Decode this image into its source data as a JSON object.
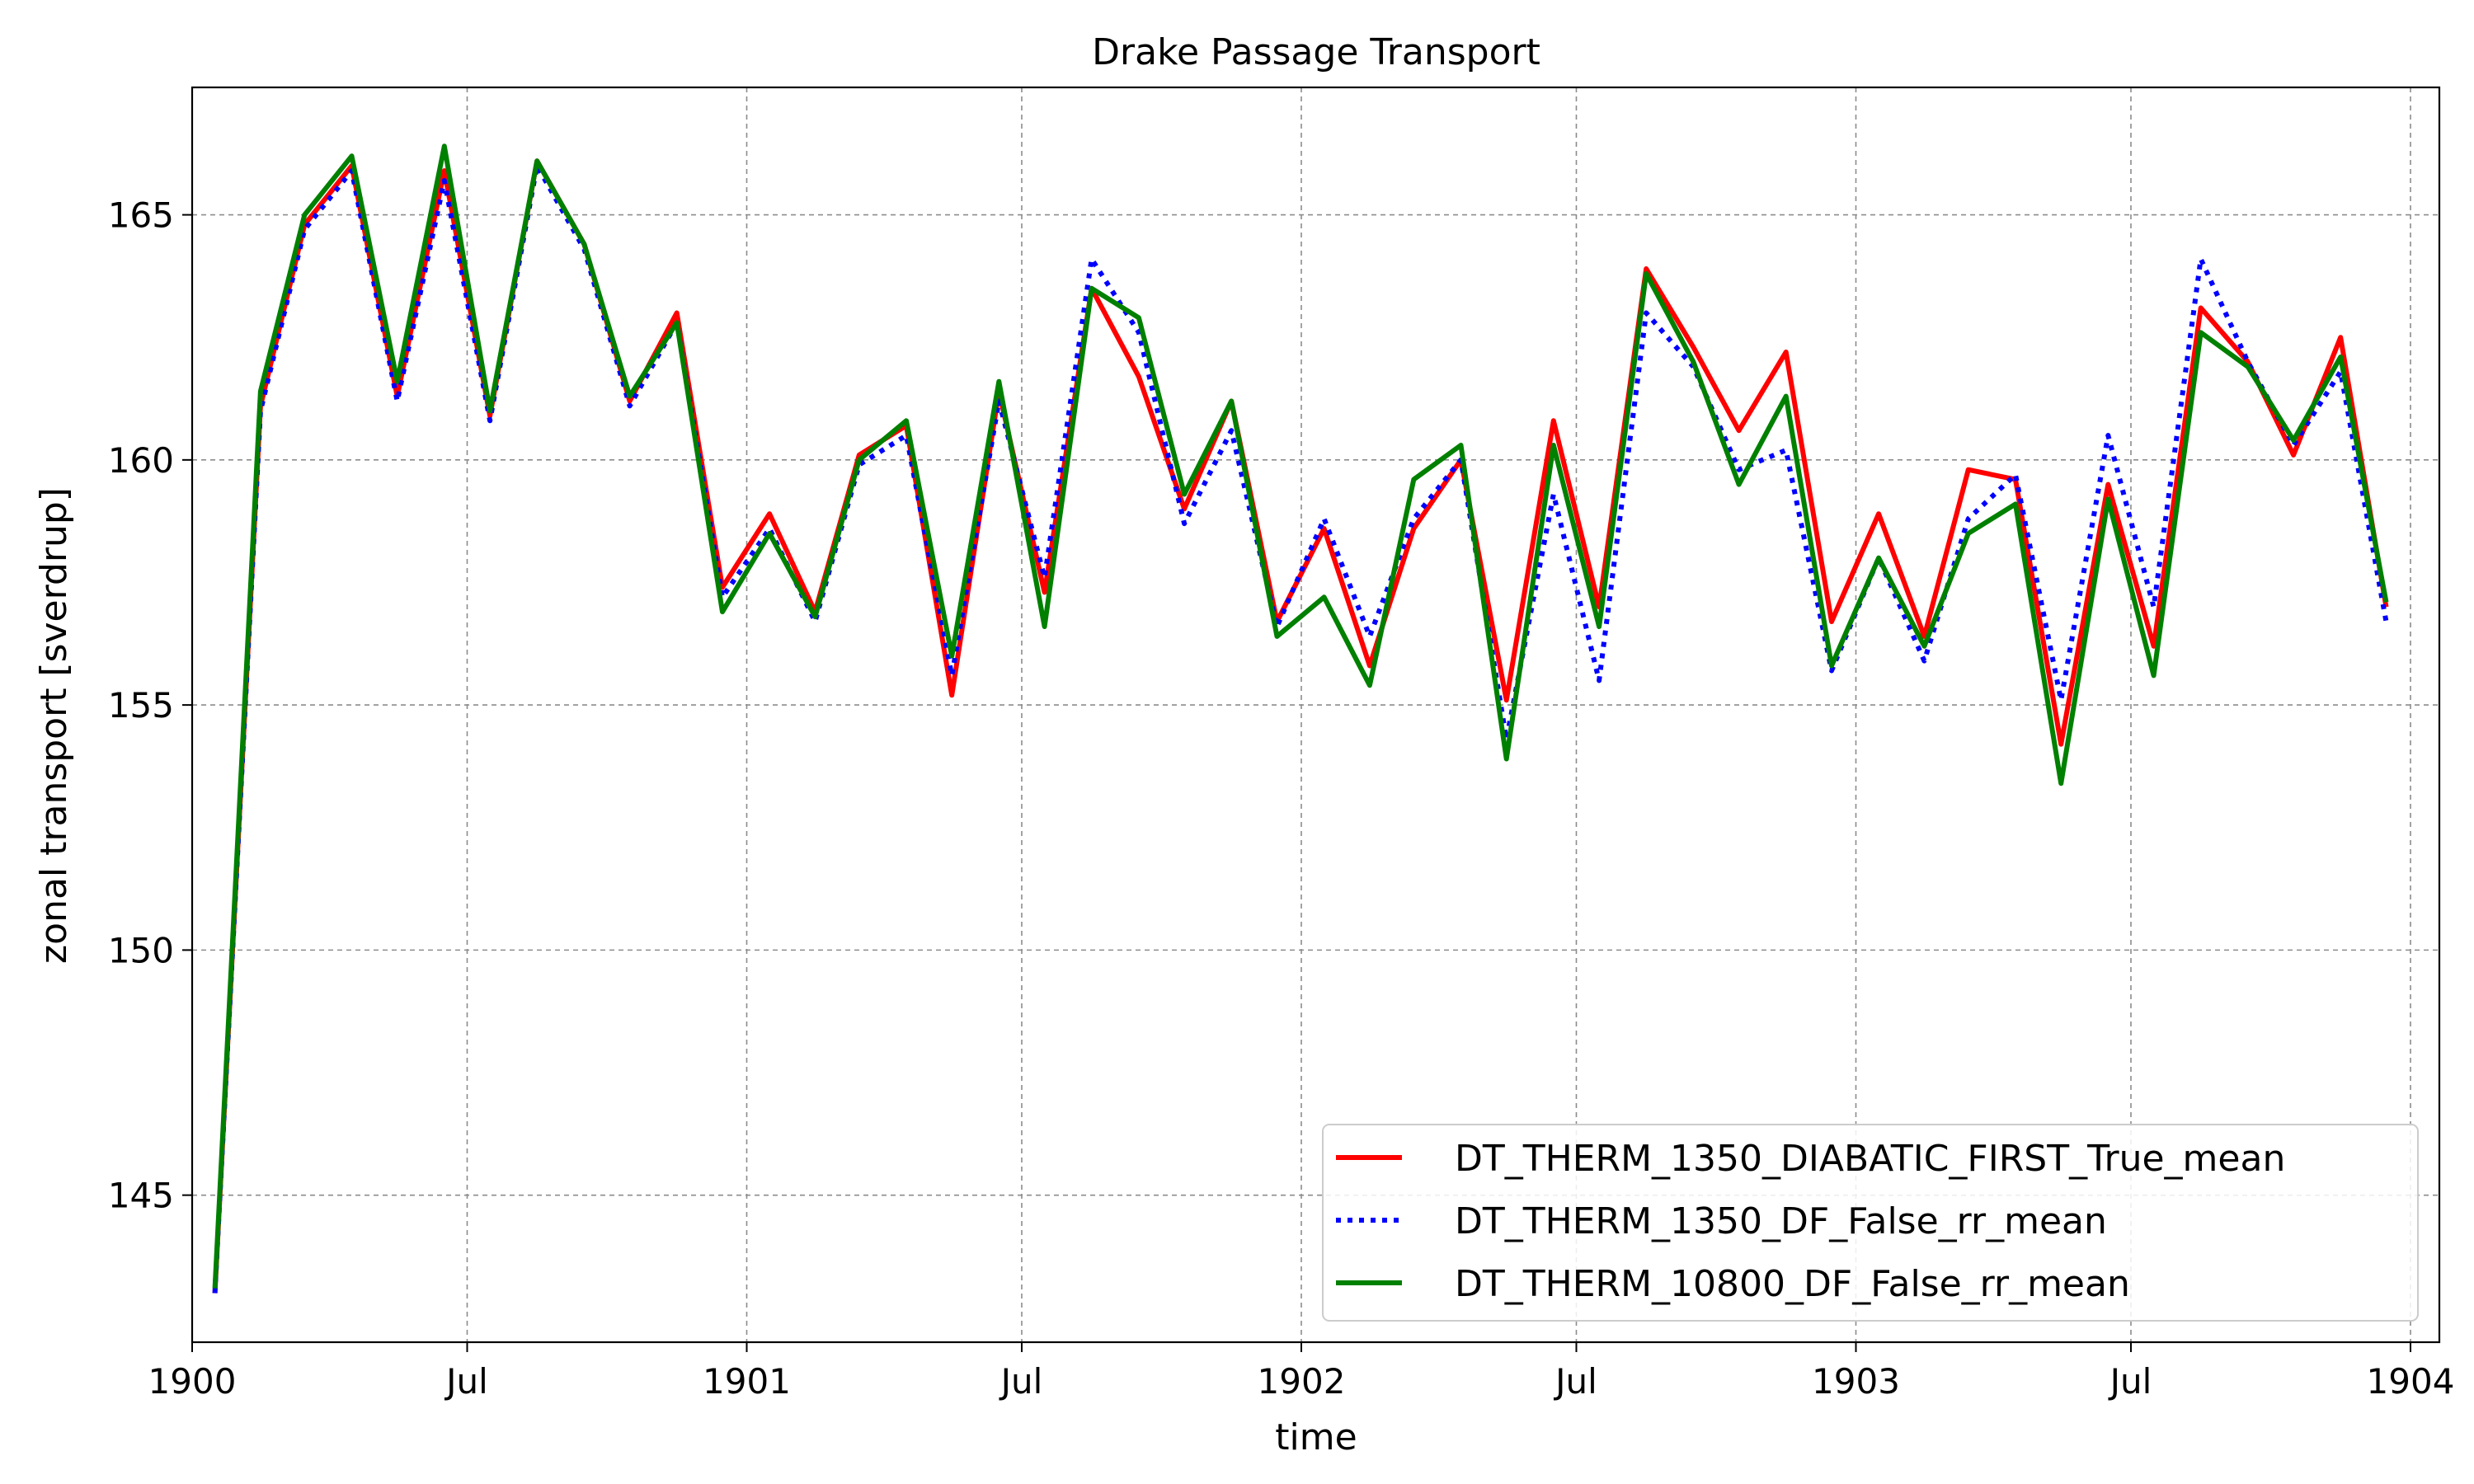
{
  "chart_data": {
    "type": "line",
    "title": "Drake Passage Transport",
    "xlabel": "time",
    "ylabel": "zonal transport [sverdrup]",
    "x_unit": "date",
    "xlim": [
      "1900-01-01",
      "1904-01-20"
    ],
    "ylim": [
      142.0,
      167.6
    ],
    "grid": true,
    "legend_position": "lower-right",
    "x_ticks": [
      {
        "date": "1900-01-01",
        "label": "1900"
      },
      {
        "date": "1900-07-01",
        "label": "Jul"
      },
      {
        "date": "1901-01-01",
        "label": "1901"
      },
      {
        "date": "1901-07-01",
        "label": "Jul"
      },
      {
        "date": "1902-01-01",
        "label": "1902"
      },
      {
        "date": "1902-07-01",
        "label": "Jul"
      },
      {
        "date": "1903-01-01",
        "label": "1903"
      },
      {
        "date": "1903-07-01",
        "label": "Jul"
      },
      {
        "date": "1904-01-01",
        "label": "1904"
      }
    ],
    "y_ticks": [
      145,
      150,
      155,
      160,
      165
    ],
    "x": [
      "1900-01-16",
      "1900-02-15",
      "1900-03-16",
      "1900-04-16",
      "1900-05-16",
      "1900-06-16",
      "1900-07-16",
      "1900-08-16",
      "1900-09-16",
      "1900-10-16",
      "1900-11-16",
      "1900-12-16",
      "1901-01-16",
      "1901-02-15",
      "1901-03-16",
      "1901-04-16",
      "1901-05-16",
      "1901-06-16",
      "1901-07-16",
      "1901-08-16",
      "1901-09-16",
      "1901-10-16",
      "1901-11-16",
      "1901-12-16",
      "1902-01-16",
      "1902-02-15",
      "1902-03-16",
      "1902-04-16",
      "1902-05-16",
      "1902-06-16",
      "1902-07-16",
      "1902-08-16",
      "1902-09-16",
      "1902-10-16",
      "1902-11-16",
      "1902-12-16",
      "1903-01-16",
      "1903-02-15",
      "1903-03-16",
      "1903-04-16",
      "1903-05-16",
      "1903-06-16",
      "1903-07-16",
      "1903-08-16",
      "1903-09-16",
      "1903-10-16",
      "1903-11-16",
      "1903-12-16"
    ],
    "series": [
      {
        "name": "DT_THERM_1350_DIABATIC_FIRST_True_mean",
        "color": "#ff0000",
        "style": "solid",
        "values": [
          143.0,
          161.1,
          164.8,
          166.0,
          161.3,
          165.9,
          160.9,
          166.1,
          164.4,
          161.2,
          163.0,
          157.4,
          158.9,
          156.9,
          160.1,
          160.7,
          155.2,
          161.4,
          157.3,
          163.5,
          161.7,
          159.0,
          161.2,
          156.7,
          158.6,
          155.8,
          158.6,
          160.0,
          155.1,
          160.8,
          157.0,
          163.9,
          162.3,
          160.6,
          162.2,
          156.7,
          158.9,
          156.4,
          159.8,
          159.6,
          154.2,
          159.5,
          156.2,
          163.1,
          162.0,
          160.1,
          162.5,
          157.0
        ]
      },
      {
        "name": "DT_THERM_1350_DF_False_rr_mean",
        "color": "#0000ff",
        "style": "dotted",
        "values": [
          143.0,
          161.0,
          164.7,
          165.9,
          161.2,
          165.7,
          160.8,
          166.0,
          164.3,
          161.1,
          162.8,
          157.2,
          158.6,
          156.7,
          159.9,
          160.5,
          155.6,
          161.2,
          157.6,
          164.1,
          162.6,
          158.7,
          160.6,
          156.6,
          158.8,
          156.4,
          158.8,
          160.0,
          154.3,
          159.3,
          155.5,
          163.0,
          161.9,
          159.8,
          160.2,
          155.7,
          158.0,
          155.9,
          158.8,
          159.7,
          155.1,
          160.5,
          157.0,
          164.1,
          162.0,
          160.3,
          161.8,
          156.7
        ]
      },
      {
        "name": "DT_THERM_10800_DF_False_rr_mean",
        "color": "#008000",
        "style": "solid",
        "values": [
          143.1,
          161.4,
          165.0,
          166.2,
          161.6,
          166.4,
          161.0,
          166.1,
          164.4,
          161.3,
          162.8,
          156.9,
          158.5,
          156.8,
          160.0,
          160.8,
          156.0,
          161.6,
          156.6,
          163.5,
          162.9,
          159.3,
          161.2,
          156.4,
          157.2,
          155.4,
          159.6,
          160.3,
          153.9,
          160.3,
          156.6,
          163.8,
          162.0,
          159.5,
          161.3,
          155.8,
          158.0,
          156.2,
          158.5,
          159.1,
          153.4,
          159.2,
          155.6,
          162.6,
          161.9,
          160.4,
          162.1,
          157.1
        ]
      }
    ]
  }
}
